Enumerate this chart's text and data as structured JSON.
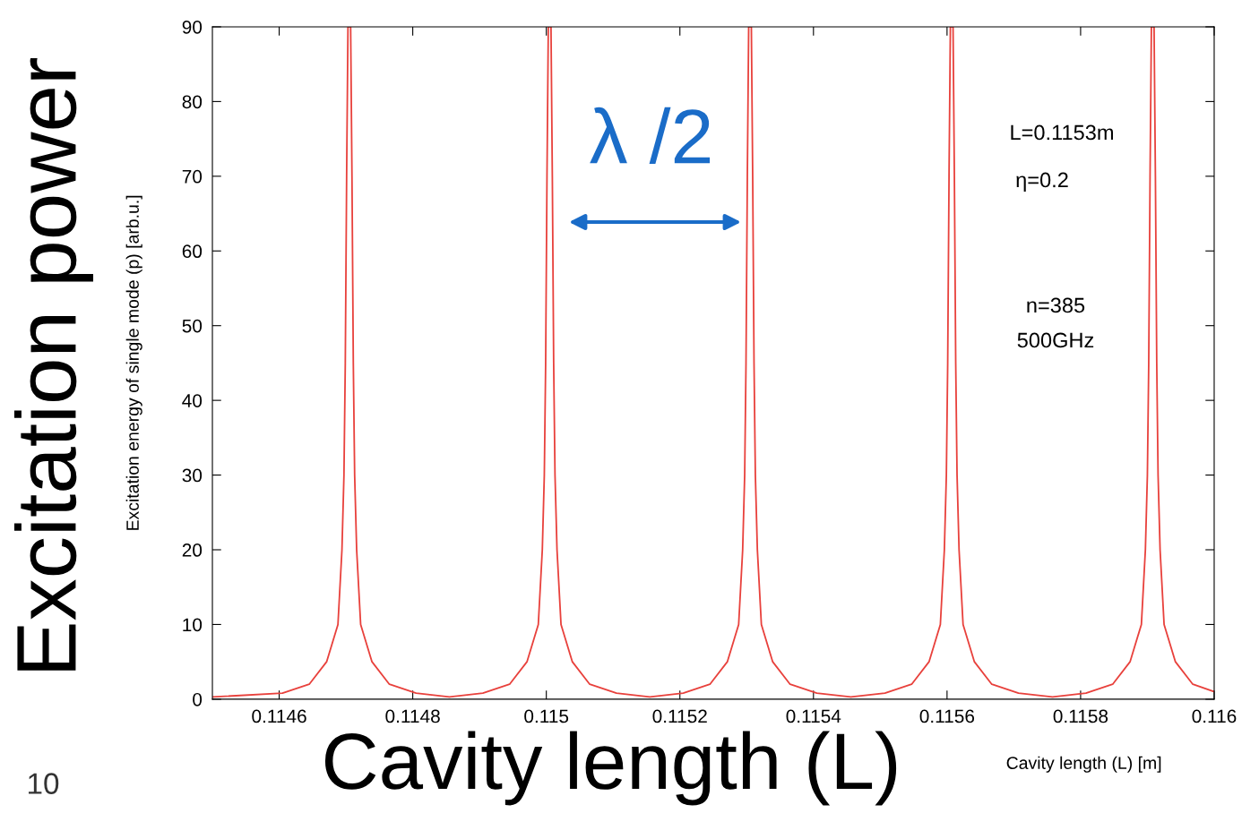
{
  "chart_data": {
    "type": "line",
    "xlabel": "Cavity length (L) [m]",
    "ylabel": "Excitation energy of single mode (p) [arb.u.]",
    "x": [
      0.1145,
      0.114605,
      0.114645,
      0.114671,
      0.114688,
      0.114694,
      0.114697,
      0.114699,
      0.114701,
      0.114703,
      0.114707,
      0.114709,
      0.114711,
      0.114713,
      0.114716,
      0.114722,
      0.114739,
      0.114765,
      0.114805,
      0.114855,
      0.114905,
      0.114945,
      0.114971,
      0.114988,
      0.114994,
      0.114997,
      0.114999,
      0.115001,
      0.115003,
      0.115007,
      0.115009,
      0.115011,
      0.115013,
      0.115016,
      0.115022,
      0.115039,
      0.115065,
      0.115105,
      0.115155,
      0.115205,
      0.115245,
      0.115271,
      0.115288,
      0.115294,
      0.115297,
      0.115299,
      0.115301,
      0.115303,
      0.115307,
      0.115309,
      0.115311,
      0.115313,
      0.115316,
      0.115322,
      0.115339,
      0.115365,
      0.115405,
      0.115456,
      0.115507,
      0.115547,
      0.115573,
      0.11559,
      0.115596,
      0.115599,
      0.115601,
      0.115603,
      0.115605,
      0.115609,
      0.115611,
      0.115613,
      0.115615,
      0.115618,
      0.115624,
      0.115641,
      0.115667,
      0.115707,
      0.115758,
      0.115808,
      0.115848,
      0.115874,
      0.115891,
      0.115897,
      0.1159,
      0.115902,
      0.115904,
      0.115906,
      0.11591,
      0.115912,
      0.115914,
      0.115916,
      0.115919,
      0.115925,
      0.115942,
      0.115968,
      0.116
    ],
    "series": [
      {
        "color": "#e8413c",
        "values": [
          0.3,
          0.8,
          2,
          5,
          10,
          20,
          30,
          45,
          70,
          90,
          90,
          70,
          45,
          30,
          20,
          10,
          5,
          2,
          0.8,
          0.3,
          0.8,
          2,
          5,
          10,
          20,
          30,
          45,
          70,
          90,
          90,
          70,
          45,
          30,
          20,
          10,
          5,
          2,
          0.8,
          0.3,
          0.8,
          2,
          5,
          10,
          20,
          30,
          45,
          70,
          90,
          90,
          70,
          45,
          30,
          20,
          10,
          5,
          2,
          0.8,
          0.3,
          0.8,
          2,
          5,
          10,
          20,
          30,
          45,
          70,
          90,
          90,
          70,
          45,
          30,
          20,
          10,
          5,
          2,
          0.8,
          0.3,
          0.8,
          2,
          5,
          10,
          20,
          30,
          45,
          70,
          90,
          90,
          70,
          45,
          30,
          20,
          10,
          5,
          2,
          1
        ]
      }
    ],
    "xlim": [
      0.1145,
      0.116
    ],
    "xticks": [
      0.1146,
      0.1148,
      0.115,
      0.1152,
      0.1154,
      0.1156,
      0.1158,
      0.116
    ],
    "ylim": [
      0,
      90
    ],
    "yticks": [
      0,
      10,
      20,
      30,
      40,
      50,
      60,
      70,
      80,
      90
    ],
    "grid": false,
    "legend": false,
    "marker": "none",
    "line_style": "solid",
    "annotations": [
      "λ /2",
      "L=0.1153m",
      "η=0.2",
      "n=385",
      "500GHz",
      "Excitation power",
      "Cavity length (L)",
      "10"
    ]
  }
}
